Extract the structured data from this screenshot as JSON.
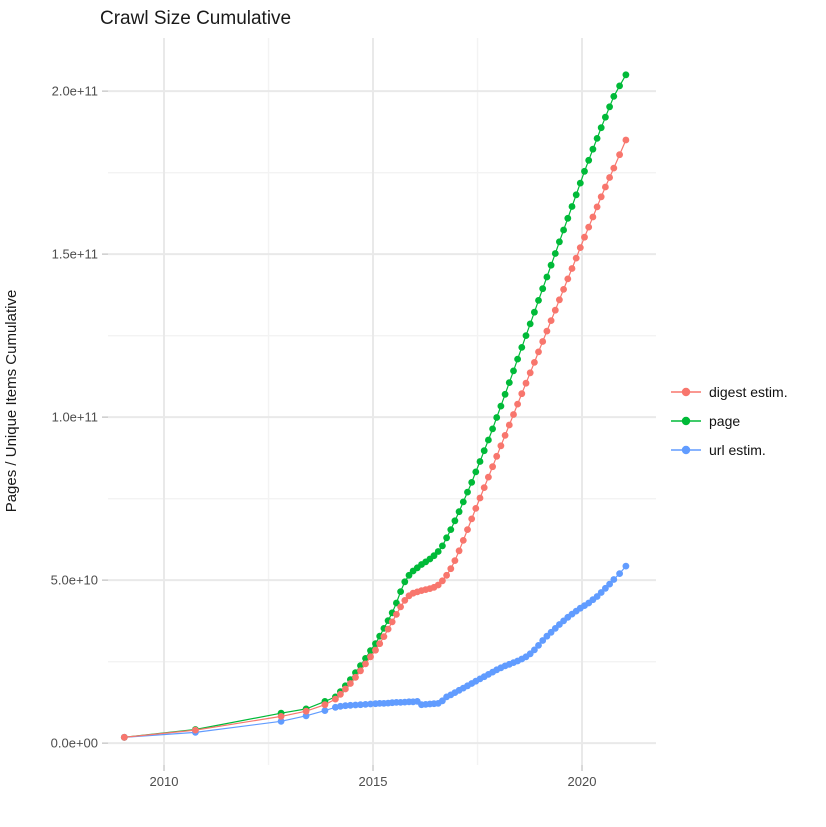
{
  "title": "Crawl Size Cumulative",
  "chart_data": {
    "type": "scatter",
    "title": "Crawl Size Cumulative",
    "xlabel": "",
    "ylabel": "Pages / Unique Items Cumulative",
    "grid": true,
    "legend_position": "right",
    "xlim": [
      2008.66,
      2021.77
    ],
    "ylim_1e10": [
      -0.67,
      21.63
    ],
    "x_major_ticks": [
      2010,
      2015,
      2020
    ],
    "x_tick_labels": [
      "2010",
      "2015",
      "2020"
    ],
    "x_minor_ticks": [
      2012.5,
      2017.5
    ],
    "y_major_ticks_1e10": [
      0,
      5,
      10,
      15,
      20
    ],
    "y_tick_labels": [
      "0.0e+00",
      "5.0e+10",
      "1.0e+11",
      "1.5e+11",
      "2.0e+11"
    ],
    "y_minor_ticks_1e10": [
      2.5,
      7.5,
      12.5,
      17.5
    ],
    "value_scale": 10000000000.0,
    "x": [
      2009.05,
      2010.75,
      2012.8,
      2013.4,
      2013.85,
      2014.1,
      2014.22,
      2014.34,
      2014.46,
      2014.58,
      2014.7,
      2014.82,
      2014.94,
      2015.06,
      2015.16,
      2015.26,
      2015.36,
      2015.46,
      2015.56,
      2015.66,
      2015.76,
      2015.86,
      2015.96,
      2016.06,
      2016.16,
      2016.26,
      2016.36,
      2016.46,
      2016.56,
      2016.66,
      2016.76,
      2016.86,
      2016.96,
      2017.06,
      2017.16,
      2017.26,
      2017.36,
      2017.46,
      2017.56,
      2017.66,
      2017.76,
      2017.86,
      2017.96,
      2018.06,
      2018.16,
      2018.26,
      2018.36,
      2018.46,
      2018.56,
      2018.66,
      2018.76,
      2018.86,
      2018.96,
      2019.06,
      2019.16,
      2019.26,
      2019.36,
      2019.46,
      2019.56,
      2019.66,
      2019.76,
      2019.86,
      2019.96,
      2020.06,
      2020.16,
      2020.26,
      2020.36,
      2020.46,
      2020.56,
      2020.66,
      2020.76,
      2020.9,
      2021.05
    ],
    "series": [
      {
        "name": "digest estim.",
        "color": "#F8766D",
        "draw_order": 3,
        "values_1e10": [
          0.18,
          0.4,
          0.82,
          0.98,
          1.18,
          1.35,
          1.5,
          1.66,
          1.83,
          2.02,
          2.22,
          2.43,
          2.65,
          2.85,
          3.05,
          3.27,
          3.5,
          3.72,
          3.95,
          4.18,
          4.38,
          4.52,
          4.6,
          4.64,
          4.68,
          4.71,
          4.74,
          4.78,
          4.85,
          4.98,
          5.15,
          5.35,
          5.6,
          5.9,
          6.22,
          6.55,
          6.88,
          7.2,
          7.52,
          7.84,
          8.16,
          8.48,
          8.8,
          9.12,
          9.44,
          9.76,
          10.08,
          10.4,
          10.72,
          11.04,
          11.36,
          11.68,
          12.0,
          12.32,
          12.64,
          12.96,
          13.28,
          13.6,
          13.92,
          14.24,
          14.56,
          14.88,
          15.2,
          15.52,
          15.83,
          16.14,
          16.45,
          16.76,
          17.06,
          17.35,
          17.64,
          18.05,
          18.5
        ]
      },
      {
        "name": "page",
        "color": "#00BA38",
        "draw_order": 1,
        "values_1e10": [
          0.18,
          0.42,
          0.92,
          1.05,
          1.28,
          1.42,
          1.58,
          1.76,
          1.95,
          2.16,
          2.38,
          2.6,
          2.84,
          3.05,
          3.28,
          3.52,
          3.76,
          4.0,
          4.3,
          4.65,
          4.95,
          5.15,
          5.28,
          5.38,
          5.48,
          5.56,
          5.65,
          5.75,
          5.88,
          6.05,
          6.3,
          6.55,
          6.82,
          7.1,
          7.4,
          7.7,
          8.0,
          8.32,
          8.64,
          8.97,
          9.3,
          9.64,
          9.99,
          10.34,
          10.7,
          11.06,
          11.42,
          11.78,
          12.14,
          12.5,
          12.86,
          13.22,
          13.58,
          13.94,
          14.3,
          14.66,
          15.02,
          15.38,
          15.74,
          16.1,
          16.46,
          16.82,
          17.18,
          17.54,
          17.88,
          18.22,
          18.55,
          18.88,
          19.2,
          19.52,
          19.84,
          20.16,
          20.5
        ]
      },
      {
        "name": "url estim.",
        "color": "#619CFF",
        "draw_order": 2,
        "values_1e10": [
          0.18,
          0.33,
          0.67,
          0.84,
          1.0,
          1.1,
          1.13,
          1.15,
          1.16,
          1.17,
          1.18,
          1.19,
          1.2,
          1.21,
          1.22,
          1.22,
          1.23,
          1.24,
          1.25,
          1.25,
          1.26,
          1.27,
          1.27,
          1.28,
          1.18,
          1.19,
          1.2,
          1.21,
          1.22,
          1.3,
          1.42,
          1.48,
          1.55,
          1.62,
          1.69,
          1.76,
          1.83,
          1.9,
          1.97,
          2.04,
          2.11,
          2.18,
          2.25,
          2.31,
          2.37,
          2.42,
          2.47,
          2.52,
          2.58,
          2.65,
          2.74,
          2.86,
          3.0,
          3.15,
          3.28,
          3.4,
          3.52,
          3.64,
          3.75,
          3.86,
          3.96,
          4.05,
          4.14,
          4.22,
          4.3,
          4.4,
          4.5,
          4.62,
          4.75,
          4.88,
          5.02,
          5.2,
          5.43
        ]
      }
    ],
    "legend": {
      "items": [
        {
          "label": "digest estim.",
          "color": "#F8766D"
        },
        {
          "label": "page",
          "color": "#00BA38"
        },
        {
          "label": "url estim.",
          "color": "#619CFF"
        }
      ]
    },
    "style": {
      "grid_major_color": "#e9e9e9",
      "grid_minor_color": "#f3f3f3",
      "tick_color": "#cccccc",
      "point_radius": 3.4,
      "line_width": 1.2
    }
  }
}
